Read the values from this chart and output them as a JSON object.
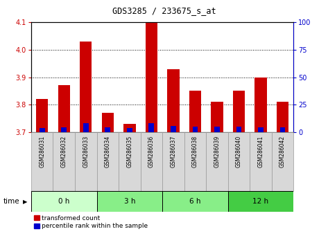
{
  "title": "GDS3285 / 233675_s_at",
  "samples": [
    "GSM286031",
    "GSM286032",
    "GSM286033",
    "GSM286034",
    "GSM286035",
    "GSM286036",
    "GSM286037",
    "GSM286038",
    "GSM286039",
    "GSM286040",
    "GSM286041",
    "GSM286042"
  ],
  "red_values": [
    3.82,
    3.87,
    4.03,
    3.77,
    3.73,
    4.1,
    3.93,
    3.85,
    3.81,
    3.85,
    3.9,
    3.81
  ],
  "blue_values": [
    3.715,
    3.718,
    3.733,
    3.717,
    3.716,
    3.732,
    3.722,
    3.72,
    3.72,
    3.72,
    3.718,
    3.718
  ],
  "baseline": 3.7,
  "ylim_left": [
    3.7,
    4.1
  ],
  "ylim_right": [
    0,
    100
  ],
  "yticks_left": [
    3.7,
    3.8,
    3.9,
    4.0,
    4.1
  ],
  "yticks_right": [
    0,
    25,
    50,
    75,
    100
  ],
  "bar_color_red": "#cc0000",
  "bar_color_blue": "#0000cc",
  "group_colors": [
    "#ccffcc",
    "#88ee88",
    "#88ee88",
    "#44cc44"
  ],
  "group_labels": [
    "0 h",
    "3 h",
    "6 h",
    "12 h"
  ],
  "group_ranges": [
    [
      0,
      2
    ],
    [
      3,
      5
    ],
    [
      6,
      8
    ],
    [
      9,
      11
    ]
  ],
  "bar_width": 0.55,
  "time_label": "time",
  "legend_red": "transformed count",
  "legend_blue": "percentile rank within the sample",
  "tick_color_left": "#cc0000",
  "tick_color_right": "#0000cc",
  "label_bg": "#d8d8d8",
  "label_edge": "#999999"
}
